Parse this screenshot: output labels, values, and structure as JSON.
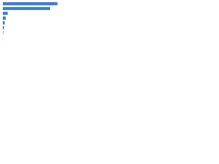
{
  "chart_data": {
    "type": "bar",
    "orientation": "horizontal",
    "categories": [
      null,
      null,
      null,
      null,
      null,
      null,
      null
    ],
    "values": [
      87,
      75,
      8,
      5,
      3,
      2,
      1
    ],
    "color": "#3a7bd5",
    "xlim": [
      0,
      100
    ]
  }
}
